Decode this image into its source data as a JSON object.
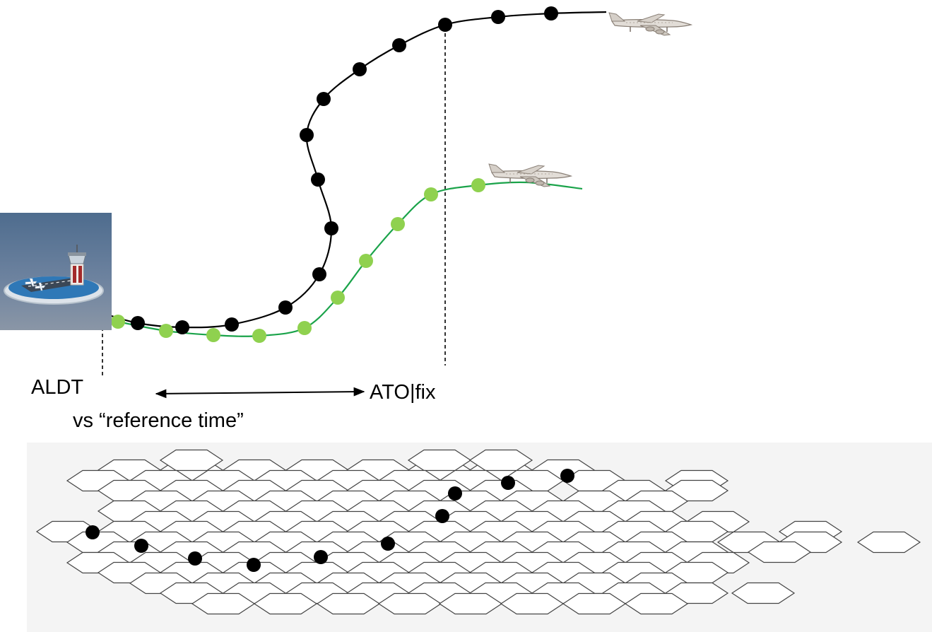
{
  "labels": {
    "aldt": "ALDT",
    "reference": "vs “reference time”",
    "ato": "ATO|fix"
  },
  "colors": {
    "track_primary": "#000000",
    "track_secondary": "#1aa34a",
    "track_secondary_dots": "#8fd14f",
    "grid_panel_background": "#f4f4f4",
    "grid_outline": "#444444",
    "airport_sky": "#55708e",
    "airport_pad": "#2f78b7"
  },
  "icons": {
    "airport": "airport-tower-icon",
    "aircraft": "airplane-icon"
  }
}
